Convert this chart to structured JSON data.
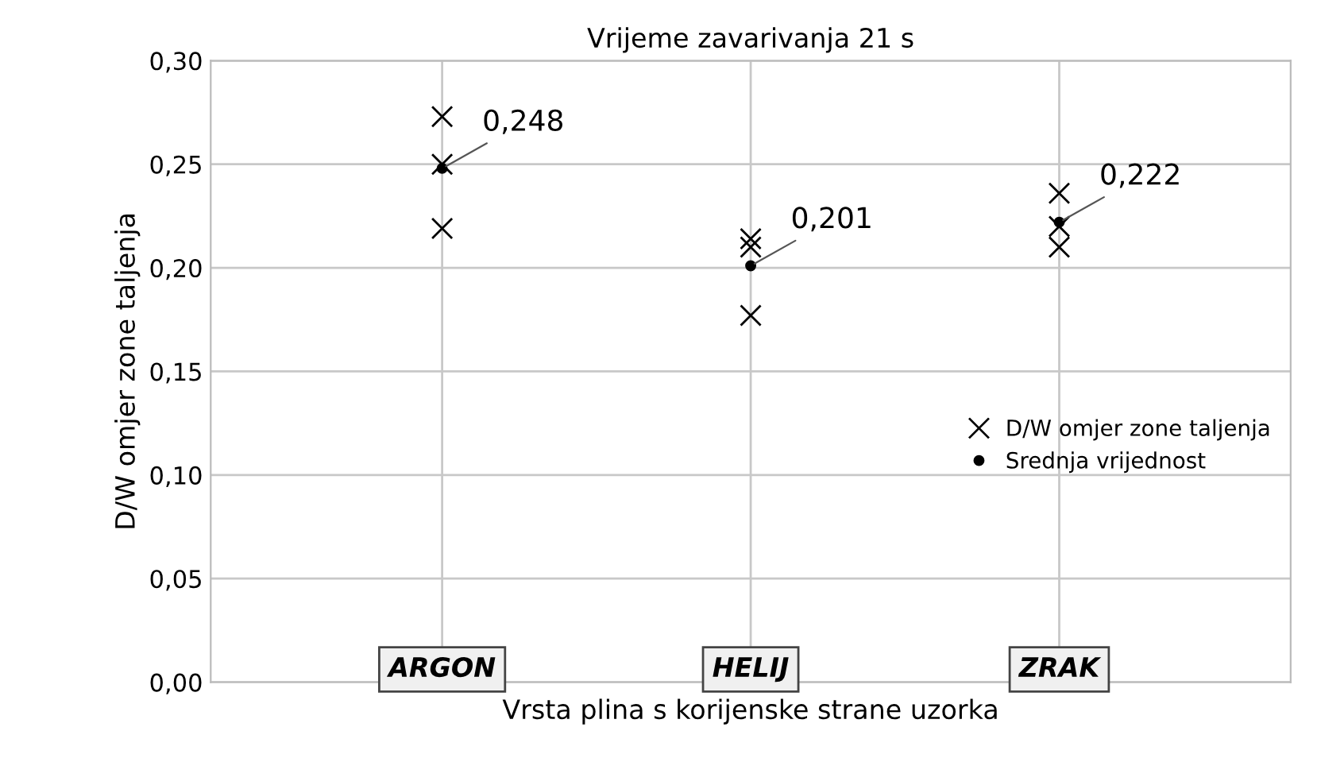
{
  "chart_data": {
    "type": "scatter",
    "title": "Vrijeme zavarivanja 21 s",
    "xlabel": "Vrsta plina s korijenske strane uzorka",
    "ylabel": "D/W omjer zone taljenja",
    "categories": [
      "ARGON",
      "HELIJ",
      "ZRAK"
    ],
    "series": [
      {
        "name": "D/W omjer zone taljenja",
        "color": "#000000",
        "marker": "cross",
        "x": [
          "ARGON",
          "ARGON",
          "ARGON",
          "HELIJ",
          "HELIJ",
          "HELIJ",
          "ZRAK",
          "ZRAK",
          "ZRAK"
        ],
        "values": [
          0.273,
          0.25,
          0.219,
          0.214,
          0.21,
          0.177,
          0.236,
          0.22,
          0.21
        ]
      },
      {
        "name": "Srednja vrijednost",
        "color": "#000000",
        "marker": "circle",
        "x": [
          "ARGON",
          "HELIJ",
          "ZRAK"
        ],
        "values": [
          0.248,
          0.201,
          0.222
        ],
        "value_labels": [
          "0,248",
          "0,201",
          "0,222"
        ]
      }
    ],
    "ylim": [
      0,
      0.3
    ],
    "yticks": [
      {
        "value": 0,
        "label": "0,00"
      },
      {
        "value": 0.05,
        "label": "0,05"
      },
      {
        "value": 0.1,
        "label": "0,10"
      },
      {
        "value": 0.15,
        "label": "0,15"
      },
      {
        "value": 0.2,
        "label": "0,20"
      },
      {
        "value": 0.25,
        "label": "0,25"
      },
      {
        "value": 0.3,
        "label": "0,30"
      }
    ],
    "grid": true,
    "legend": "right"
  }
}
